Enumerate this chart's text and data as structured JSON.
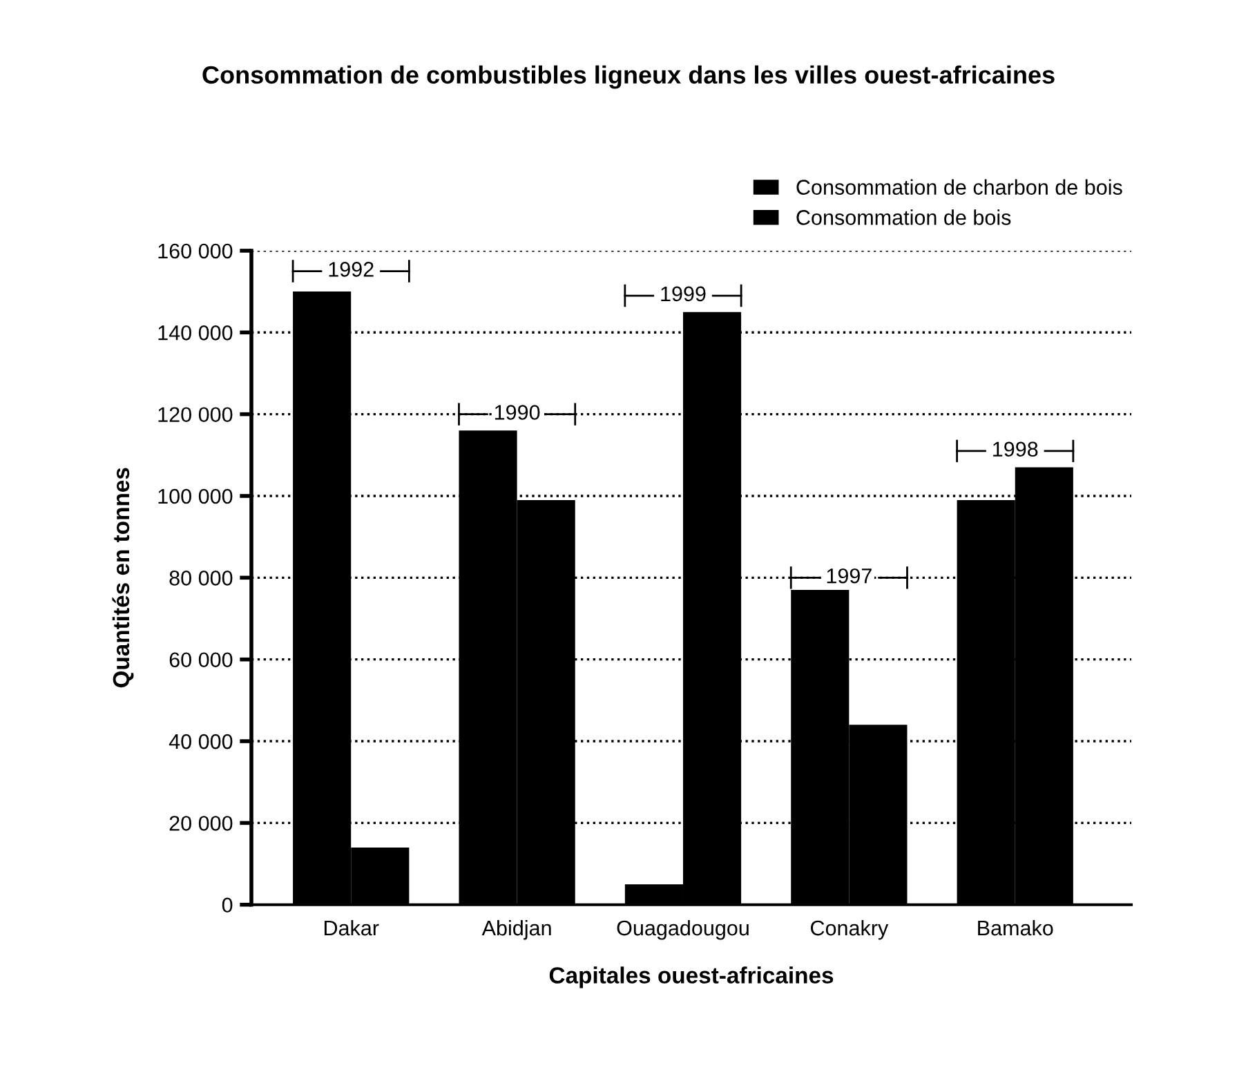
{
  "chart_data": {
    "type": "bar",
    "title": "Consommation de combustibles ligneux dans les villes ouest-africaines",
    "xlabel": "Capitales ouest-africaines",
    "ylabel": "Quantités en tonnes",
    "categories": [
      "Dakar",
      "Abidjan",
      "Ouagadougou",
      "Conakry",
      "Bamako"
    ],
    "series": [
      {
        "name": "Consommation de charbon de bois",
        "color": "#000000",
        "values": [
          150000,
          116000,
          5000,
          77000,
          99000
        ]
      },
      {
        "name": "Consommation de bois",
        "color": "#000000",
        "values": [
          14000,
          99000,
          145000,
          44000,
          107000
        ]
      }
    ],
    "ylim": [
      0,
      160000
    ],
    "yticks": [
      {
        "value": 0,
        "label": "0"
      },
      {
        "value": 20000,
        "label": "20 000"
      },
      {
        "value": 40000,
        "label": "40 000"
      },
      {
        "value": 60000,
        "label": "60 000"
      },
      {
        "value": 80000,
        "label": "80 000"
      },
      {
        "value": 100000,
        "label": "100 000"
      },
      {
        "value": 120000,
        "label": "120 000"
      },
      {
        "value": 140000,
        "label": "140 000"
      },
      {
        "value": 160000,
        "label": "160 000"
      }
    ],
    "grid": "y",
    "legend": "top right",
    "annotations": [
      {
        "text": "1992",
        "x": "Dakar",
        "y": 155000
      },
      {
        "text": "1990",
        "x": "Abidjan",
        "y": 120000
      },
      {
        "text": "1999",
        "x": "Ouagadougou",
        "y": 149000
      },
      {
        "text": "1997",
        "x": "Conakry",
        "y": 80000
      },
      {
        "text": "1998",
        "x": "Bamako",
        "y": 111000
      }
    ]
  }
}
